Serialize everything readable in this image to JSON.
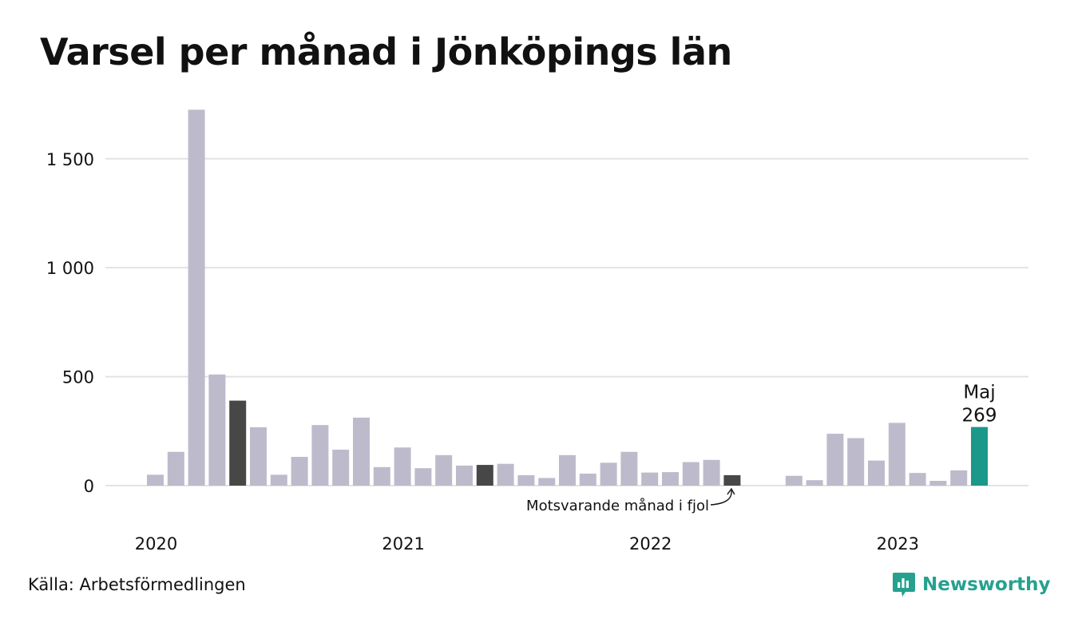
{
  "title": "Varsel per månad i Jönköpings län",
  "source": "Källa: Arbetsförmedlingen",
  "brand": "Newsworthy",
  "colors": {
    "bar": "#bdbbcb",
    "highlight_prior": "#474747",
    "highlight_current": "#1a9889",
    "grid": "#e3e3e3",
    "text": "#111111",
    "brand": "#25a18e"
  },
  "chart_data": {
    "type": "bar",
    "title": "Varsel per månad i Jönköpings län",
    "xlabel": "",
    "ylabel": "",
    "ylim": [
      0,
      1730
    ],
    "yticks": [
      0,
      500,
      1000,
      1500
    ],
    "ytick_labels": [
      "0",
      "500",
      "1 000",
      "1 500"
    ],
    "grid": true,
    "x_year_labels": [
      {
        "label": "2020",
        "at_index": 0
      },
      {
        "label": "2021",
        "at_index": 12
      },
      {
        "label": "2022",
        "at_index": 24
      },
      {
        "label": "2023",
        "at_index": 36
      }
    ],
    "categories": [
      "2020-01",
      "2020-02",
      "2020-03",
      "2020-04",
      "2020-05",
      "2020-06",
      "2020-07",
      "2020-08",
      "2020-09",
      "2020-10",
      "2020-11",
      "2020-12",
      "2021-01",
      "2021-02",
      "2021-03",
      "2021-04",
      "2021-05",
      "2021-06",
      "2021-07",
      "2021-08",
      "2021-09",
      "2021-10",
      "2021-11",
      "2021-12",
      "2022-01",
      "2022-02",
      "2022-03",
      "2022-04",
      "2022-05",
      "2022-06",
      "2022-07",
      "2022-08",
      "2022-09",
      "2022-10",
      "2022-11",
      "2022-12",
      "2023-01",
      "2023-02",
      "2023-03",
      "2023-04",
      "2023-05"
    ],
    "values": [
      50,
      155,
      1725,
      510,
      390,
      268,
      50,
      132,
      278,
      165,
      312,
      85,
      175,
      80,
      140,
      92,
      95,
      100,
      48,
      35,
      140,
      55,
      105,
      155,
      60,
      62,
      108,
      118,
      48,
      0,
      0,
      45,
      25,
      238,
      218,
      115,
      288,
      58,
      22,
      70,
      269
    ],
    "highlight_prior_indices": [
      4,
      16,
      28
    ],
    "highlight_current_index": 40,
    "annotations": {
      "current_month": "Maj",
      "current_value": "269",
      "prior_label": "Motsvarande månad i fjol"
    }
  }
}
